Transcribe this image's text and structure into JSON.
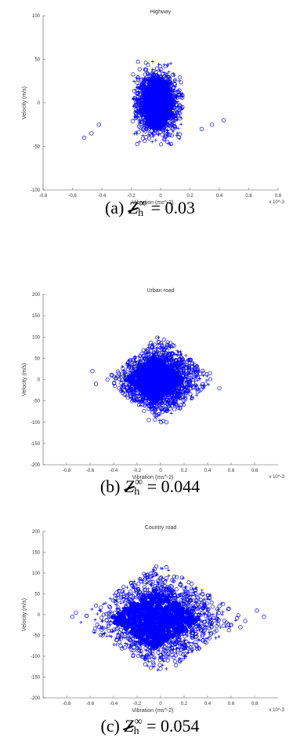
{
  "marker_color": "#0000ff",
  "chart_data": [
    {
      "type": "scatter",
      "title": "Highway",
      "xlabel": "Vibration (ms^-2)",
      "ylabel": "Velocity (m/s)",
      "x_exponent_label": "x 10^-3",
      "xlim": [
        -0.8,
        0.8
      ],
      "ylim": [
        -100,
        100
      ],
      "xticks": [
        "-0.8",
        "-0.6",
        "-0.4",
        "-0.2",
        "0",
        "0.2",
        "0.4",
        "0.6",
        "0.8"
      ],
      "yticks": [
        "100",
        "50",
        "0",
        "-50",
        "-100"
      ],
      "series_shape": {
        "x_spread": 0.2,
        "y_spread": 50,
        "y_center": 0
      },
      "outliers": [
        [
          -0.52,
          -40
        ],
        [
          -0.47,
          -35
        ],
        [
          -0.42,
          -25
        ],
        [
          0.28,
          -30
        ],
        [
          0.35,
          -25
        ],
        [
          0.43,
          -20
        ]
      ],
      "caption": {
        "label": "(a)",
        "sym": "Z",
        "sub": "h",
        "sup": "∞",
        "value": "= 0.03"
      }
    },
    {
      "type": "scatter",
      "title": "Urban road",
      "xlabel": "Vibration (ms^-2)",
      "ylabel": "Velocity (m/s)",
      "x_exponent_label": "x 10^-3",
      "xlim": [
        -1,
        1
      ],
      "ylim": [
        -200,
        200
      ],
      "xticks": [
        "-0.8",
        "-0.6",
        "-0.4",
        "-0.2",
        "0",
        "0.2",
        "0.4",
        "0.6",
        "0.8"
      ],
      "yticks": [
        "200",
        "150",
        "100",
        "50",
        "0",
        "-50",
        "-100",
        "-150",
        "-200"
      ],
      "series_shape": {
        "x_spread": 0.45,
        "y_spread": 100,
        "y_center": 0
      },
      "outliers": [
        [
          -0.58,
          20
        ],
        [
          -0.55,
          -10
        ],
        [
          0.42,
          15
        ],
        [
          0.5,
          -20
        ],
        [
          -0.1,
          -95
        ],
        [
          0.05,
          -100
        ]
      ],
      "caption": {
        "label": "(b)",
        "sym": "Z",
        "sub": "h",
        "sup": "∞",
        "value": "= 0.044"
      }
    },
    {
      "type": "scatter",
      "title": "Country road",
      "xlabel": "Vibration (ms^-2)",
      "ylabel": "Velocity (m/s)",
      "x_exponent_label": "x 10^-3",
      "xlim": [
        -1,
        1
      ],
      "ylim": [
        -200,
        200
      ],
      "xticks": [
        "-0.8",
        "-0.6",
        "-0.4",
        "-0.2",
        "0",
        "0.2",
        "0.4",
        "0.6",
        "0.8"
      ],
      "yticks": [
        "200",
        "150",
        "100",
        "50",
        "0",
        "-50",
        "-100",
        "-150",
        "-200"
      ],
      "series_shape": {
        "x_spread": 0.7,
        "y_spread": 130,
        "y_center": -10
      },
      "outliers": [
        [
          -0.75,
          -5
        ],
        [
          -0.72,
          5
        ],
        [
          0.68,
          -30
        ],
        [
          0.72,
          -15
        ],
        [
          0.82,
          10
        ],
        [
          0.88,
          -5
        ],
        [
          -0.05,
          110
        ],
        [
          0.0,
          -130
        ]
      ],
      "caption": {
        "label": "(c)",
        "sym": "Z",
        "sub": "h",
        "sup": "∞",
        "value": "= 0.054"
      }
    }
  ]
}
